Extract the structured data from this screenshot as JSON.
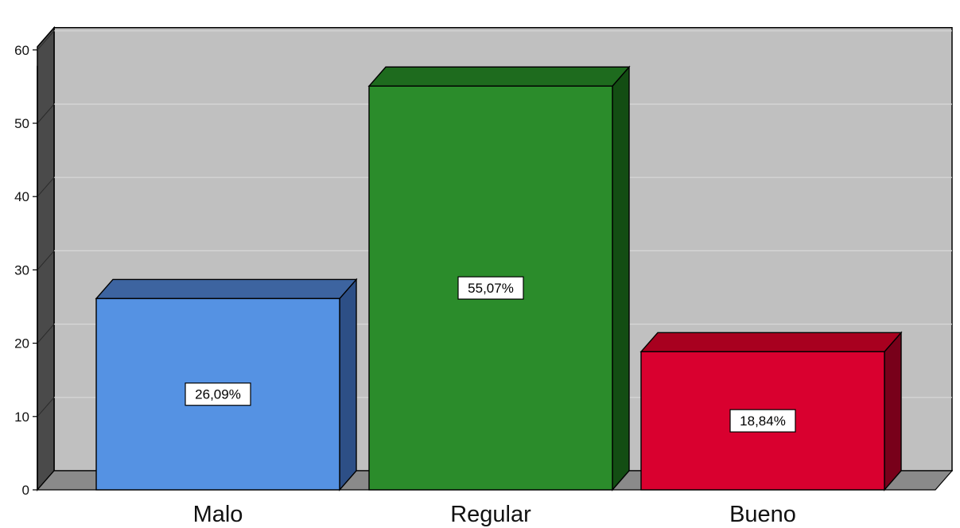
{
  "chart_data": {
    "type": "bar",
    "categories": [
      "Malo",
      "Regular",
      "Bueno"
    ],
    "values": [
      26.09,
      55.07,
      18.84
    ],
    "data_labels": [
      "26,09%",
      "55,07%",
      "18,84%"
    ],
    "ylim": [
      0,
      60
    ],
    "y_ticks": [
      0,
      10,
      20,
      30,
      40,
      50,
      60
    ],
    "title": "",
    "xlabel": "",
    "ylabel": "",
    "grid": true,
    "legend": "none",
    "three_d": true,
    "colors": {
      "front": [
        "#5592e3",
        "#2b8c2b",
        "#d9002f"
      ],
      "top": [
        "#3d64a0",
        "#1e6b1e",
        "#a8001f"
      ],
      "side": [
        "#2d4f86",
        "#134d13",
        "#78001a"
      ],
      "wall": "#c0c0c0",
      "floor": "#8a8a8a",
      "wall_side": "#4a4a4a"
    }
  }
}
